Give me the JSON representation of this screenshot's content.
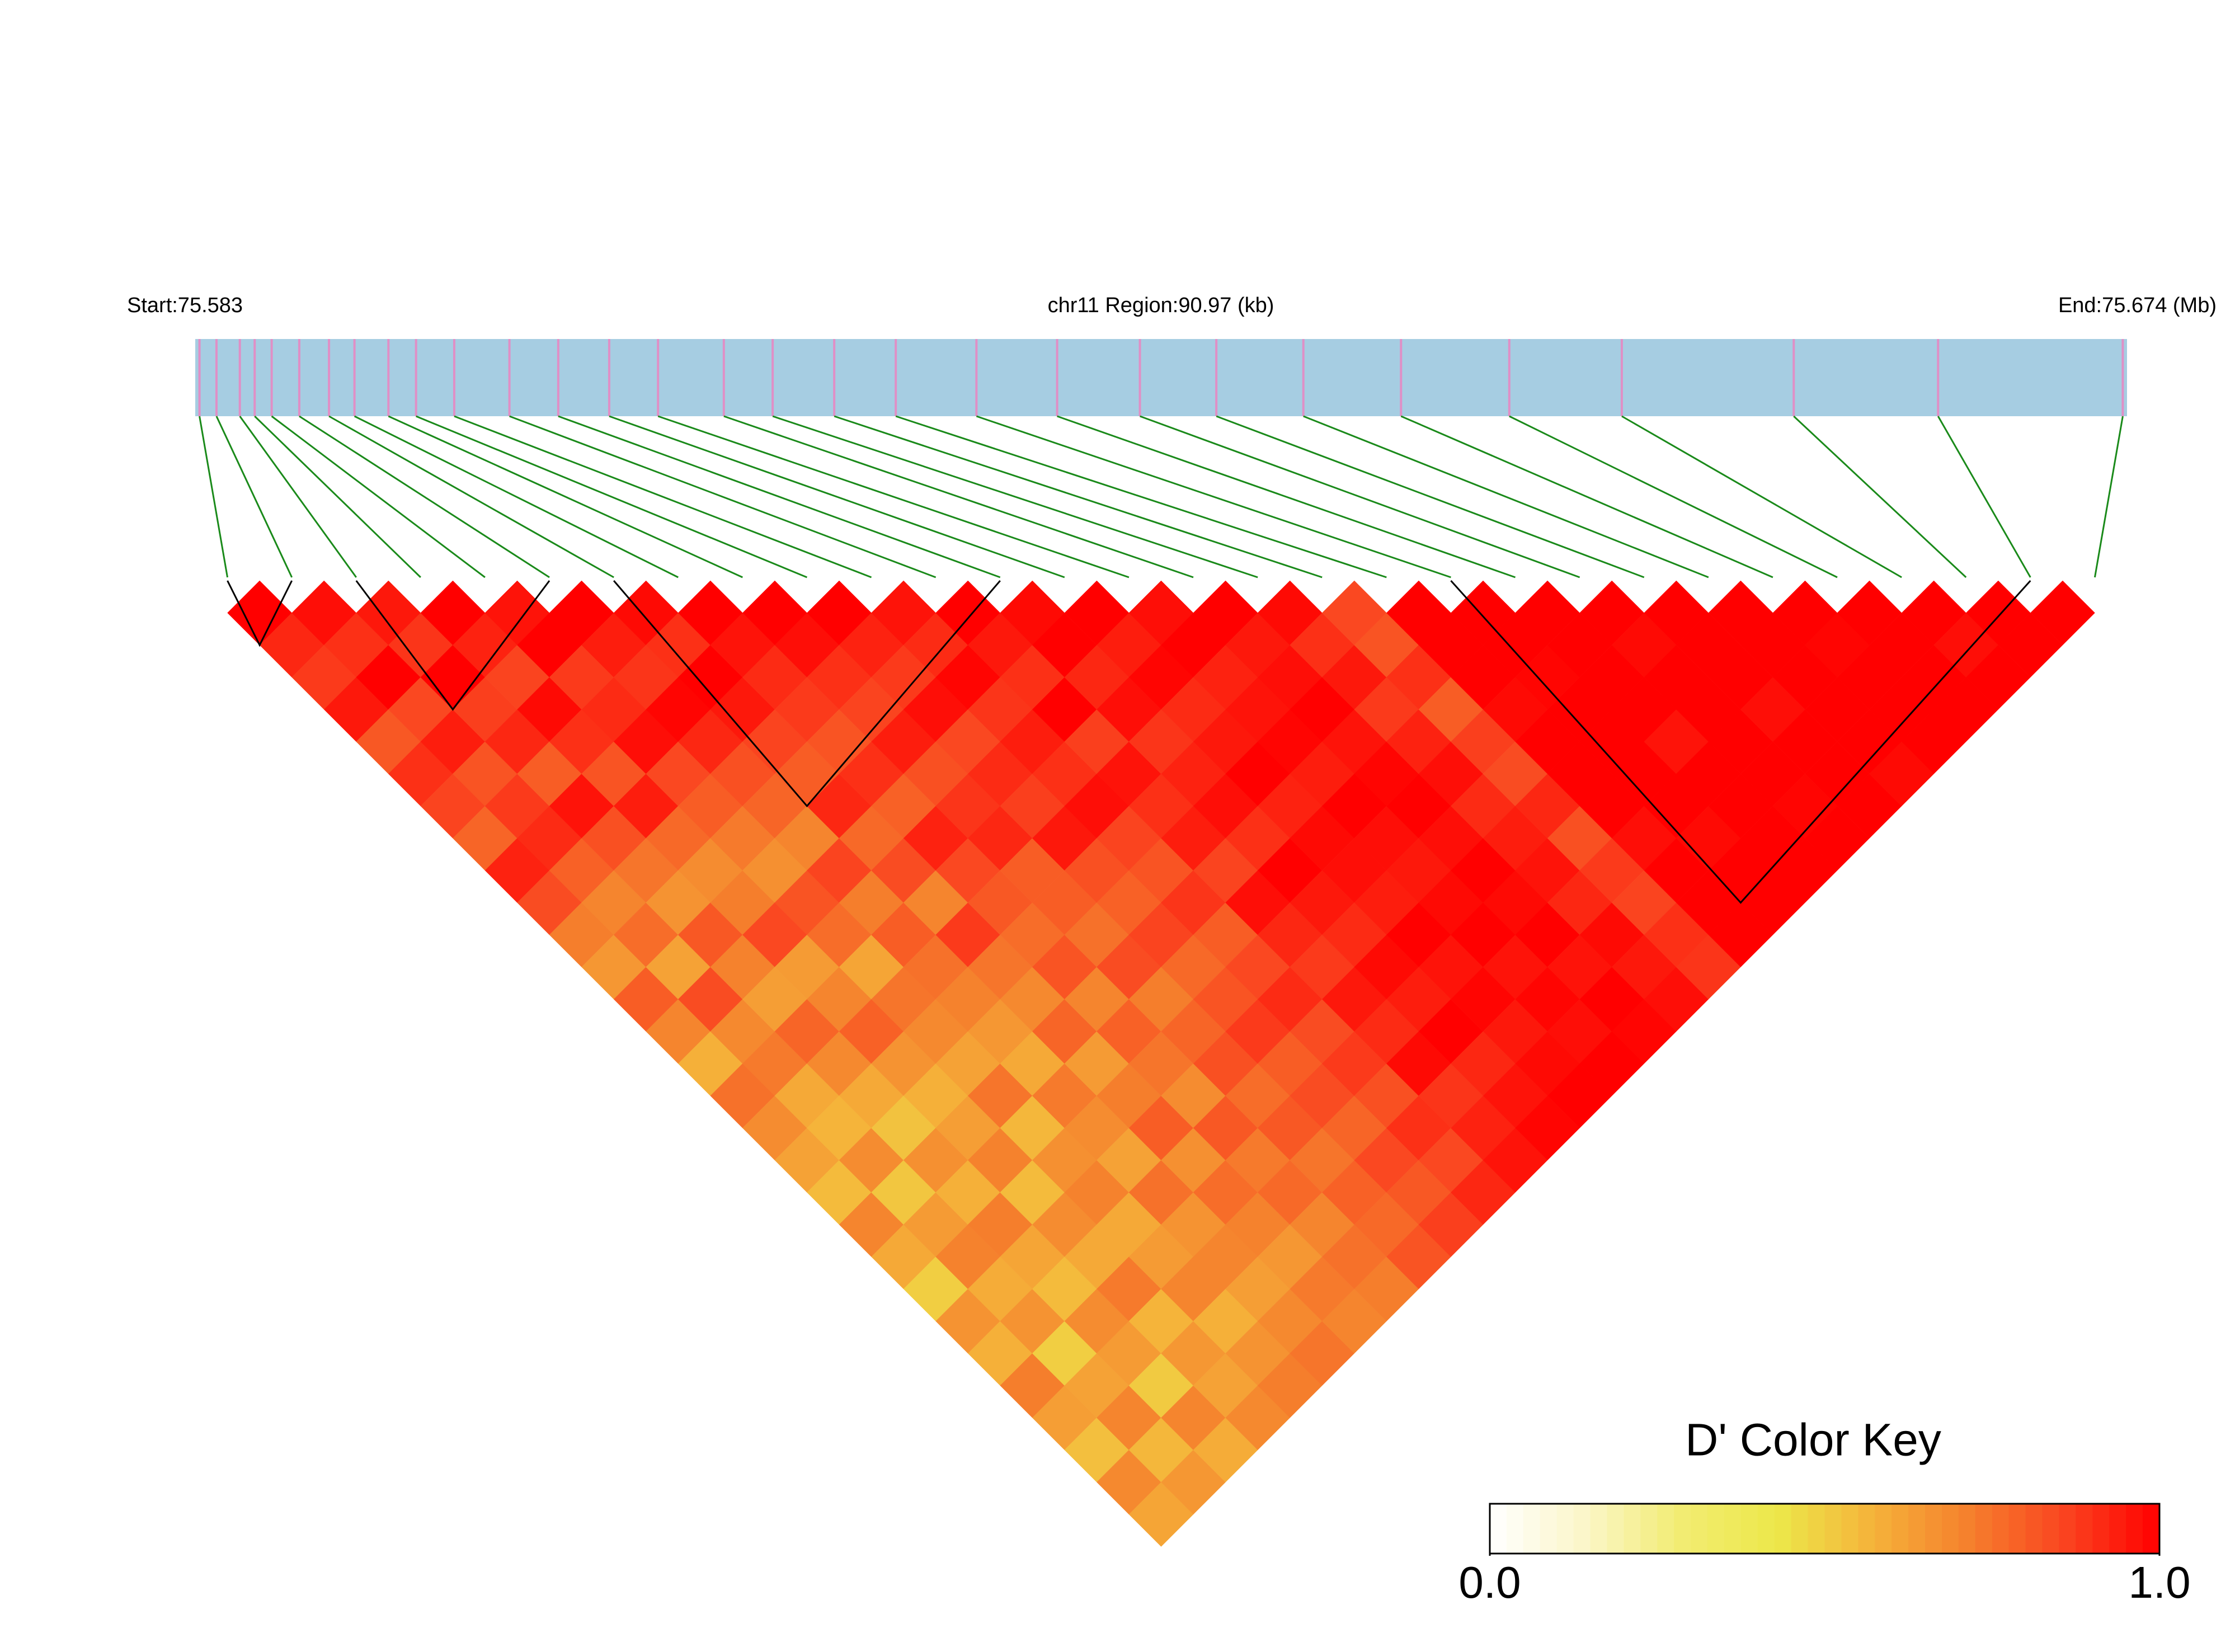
{
  "chart_data": {
    "type": "ld_heatmap",
    "start_label": "Start:75.583",
    "region_label": "chr11 Region:90.97 (kb)",
    "end_label": "End:75.674 (Mb)",
    "xlim": [
      75.583,
      75.674
    ],
    "snp_positions": [
      75.5832,
      75.584,
      75.5851,
      75.5858,
      75.5866,
      75.5879,
      75.5893,
      75.5905,
      75.5921,
      75.5934,
      75.5952,
      75.5978,
      75.6001,
      75.6025,
      75.6048,
      75.6079,
      75.6102,
      75.6131,
      75.616,
      75.6198,
      75.6236,
      75.6275,
      75.6311,
      75.6352,
      75.6398,
      75.6449,
      75.6502,
      75.6583,
      75.6651,
      75.6738
    ],
    "dprime": [
      [
        1,
        0.92,
        0.88,
        0.95,
        0.81,
        0.9,
        0.86,
        0.78,
        0.93,
        0.84,
        0.72,
        0.65,
        0.8,
        0.7,
        0.58,
        0.75,
        0.68,
        0.62,
        0.55,
        0.7,
        0.6,
        0.5,
        0.66,
        0.58,
        0.72,
        0.63,
        0.54,
        0.69,
        0.61
      ],
      [
        0.97,
        0.9,
        1,
        0.85,
        0.94,
        0.82,
        0.88,
        0.91,
        0.79,
        0.7,
        0.76,
        0.62,
        0.84,
        0.69,
        0.73,
        0.6,
        0.57,
        0.68,
        0.52,
        0.64,
        0.71,
        0.59,
        0.66,
        0.5,
        0.62,
        0.7,
        0.56,
        0.65
      ],
      [
        0.95,
        0.89,
        1,
        0.87,
        0.92,
        0.8,
        0.96,
        0.83,
        0.74,
        0.66,
        0.81,
        0.71,
        0.63,
        0.78,
        0.69,
        0.6,
        0.53,
        0.67,
        0.58,
        0.72,
        0.61,
        0.55,
        0.68,
        0.64,
        0.51,
        0.7,
        0.59
      ],
      [
        1,
        0.93,
        0.86,
        0.98,
        0.9,
        0.82,
        0.94,
        0.77,
        0.68,
        0.72,
        0.85,
        0.64,
        0.7,
        0.79,
        0.66,
        0.58,
        0.63,
        0.71,
        0.55,
        0.68,
        0.6,
        0.73,
        0.57,
        0.65,
        0.62,
        0.69
      ],
      [
        0.96,
        1,
        0.88,
        0.91,
        0.97,
        0.85,
        0.8,
        0.73,
        0.67,
        0.82,
        0.76,
        0.61,
        0.74,
        0.69,
        0.62,
        0.74,
        0.56,
        0.67,
        0.71,
        0.6,
        0.64,
        0.7,
        0.58,
        0.66,
        0.72
      ],
      [
        1,
        0.94,
        0.89,
        0.99,
        0.92,
        0.83,
        0.78,
        0.7,
        0.86,
        0.72,
        0.8,
        0.75,
        0.71,
        0.65,
        0.6,
        0.73,
        0.68,
        0.62,
        0.75,
        0.66,
        0.7,
        0.63,
        0.69,
        0.74
      ],
      [
        0.98,
        0.9,
        1,
        0.95,
        0.86,
        0.8,
        0.92,
        0.77,
        0.84,
        0.7,
        0.88,
        0.74,
        0.69,
        0.78,
        0.64,
        0.72,
        0.8,
        0.67,
        0.76,
        0.71,
        0.65,
        0.73,
        0.7
      ],
      [
        1,
        0.96,
        0.91,
        0.88,
        0.82,
        0.9,
        0.79,
        0.93,
        0.85,
        0.81,
        0.76,
        0.82,
        0.7,
        0.79,
        0.74,
        0.68,
        0.81,
        0.73,
        0.77,
        0.7,
        0.75,
        0.72
      ],
      [
        1,
        0.97,
        0.9,
        0.86,
        0.94,
        0.83,
        0.89,
        0.92,
        0.8,
        0.8,
        0.75,
        0.84,
        0.72,
        0.78,
        0.83,
        0.76,
        0.81,
        0.74,
        0.79,
        0.77,
        0.82
      ],
      [
        1,
        0.93,
        0.88,
        0.97,
        0.85,
        0.91,
        0.87,
        0.95,
        0.83,
        0.79,
        0.86,
        0.77,
        0.82,
        0.88,
        0.8,
        0.84,
        0.78,
        0.85,
        0.81,
        0.87
      ],
      [
        0.96,
        0.91,
        0.99,
        0.89,
        0.94,
        0.9,
        0.97,
        0.86,
        0.82,
        0.89,
        0.8,
        0.85,
        0.91,
        0.84,
        0.88,
        0.83,
        0.9,
        0.85,
        0.92
      ],
      [
        1,
        0.95,
        0.9,
        1,
        0.87,
        0.96,
        0.9,
        0.94,
        0.86,
        0.97,
        0.92,
        0.88,
        0.95,
        0.91,
        0.98,
        0.89,
        0.93,
        0.96
      ],
      [
        0.98,
        1,
        0.92,
        0.97,
        0.89,
        0.93,
        0.97,
        0.9,
        1,
        0.95,
        0.91,
        0.98,
        0.94,
        1,
        0.92,
        0.96,
        0.99
      ],
      [
        1,
        0.94,
        0.99,
        0.91,
        0.95,
        1,
        0.93,
        0.98,
        0.97,
        0.94,
        1,
        0.96,
        0.99,
        0.95,
        0.98,
        1
      ],
      [
        0.97,
        1,
        0.93,
        0.96,
        0.99,
        0.94,
        1,
        0.97,
        0.95,
        0.98,
        1,
        0.96,
        0.99,
        0.97,
        1
      ],
      [
        1,
        0.95,
        0.97,
        1,
        0.96,
        0.99,
        1,
        0.97,
        1,
        0.98,
        1,
        0.96,
        1,
        0.99
      ],
      [
        0.98,
        0.9,
        0.95,
        0.88,
        0.93,
        0.97,
        0.91,
        0.94,
        0.96,
        0.92,
        0.98,
        0.95,
        0.97
      ],
      [
        0.85,
        0.82,
        0.9,
        0.8,
        0.87,
        0.84,
        0.92,
        0.83,
        0.88,
        0.86,
        0.9,
        0.89
      ],
      [
        1,
        1,
        1,
        0.98,
        1,
        1,
        1,
        0.97,
        1,
        1,
        1
      ],
      [
        1,
        1,
        0.99,
        1,
        1,
        1,
        1,
        0.98,
        1,
        1
      ],
      [
        1,
        1,
        1,
        1,
        0.96,
        1,
        1,
        1,
        1
      ],
      [
        1,
        0.98,
        1,
        1,
        1,
        1,
        0.99,
        1
      ],
      [
        1,
        1,
        1,
        0.97,
        1,
        1,
        1
      ],
      [
        1,
        1,
        1,
        1,
        1,
        0.98
      ],
      [
        1,
        0.99,
        1,
        1,
        1
      ],
      [
        1,
        1,
        1,
        1
      ],
      [
        1,
        0.97,
        1
      ],
      [
        1,
        1
      ],
      [
        1
      ]
    ],
    "blocks": [
      [
        0,
        1
      ],
      [
        2,
        5
      ],
      [
        6,
        12
      ],
      [
        19,
        28
      ]
    ],
    "colorscale": [
      "#ffffff",
      "#fbf6c8",
      "#f2ec72",
      "#ece84a",
      "#f5b33a",
      "#f5802d",
      "#fa4520",
      "#ff0000"
    ],
    "colorbar_title": "D' Color Key",
    "clim": [
      0,
      1
    ],
    "cticks": [
      {
        "value": 0,
        "label": "0.0"
      },
      {
        "value": 1,
        "label": "1.0"
      }
    ]
  }
}
